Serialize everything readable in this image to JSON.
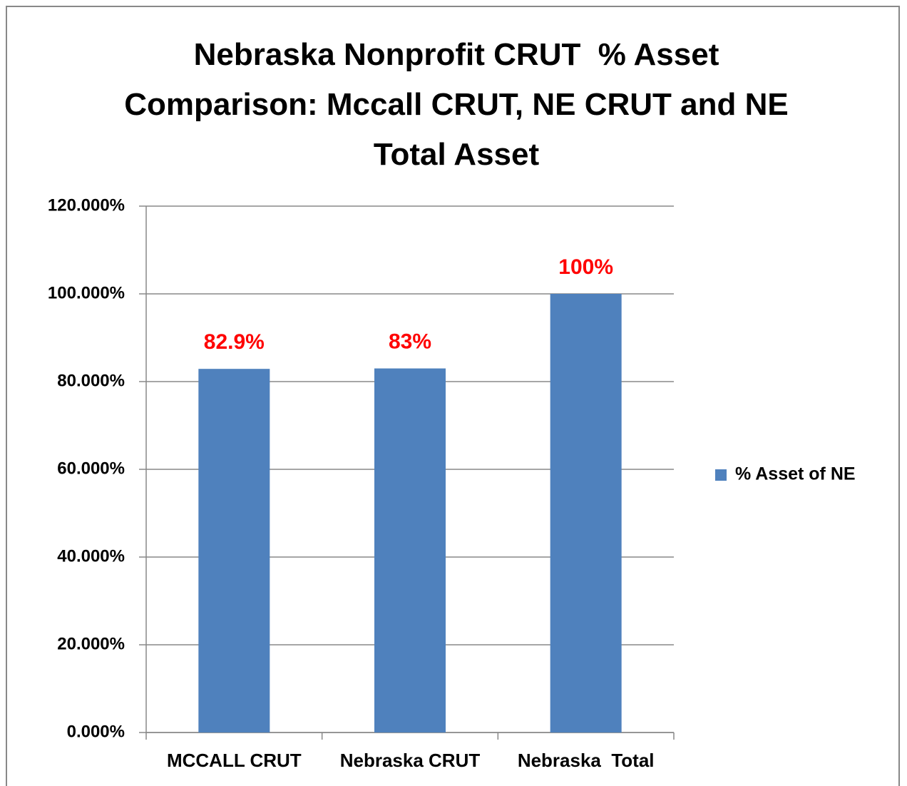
{
  "chart_data": {
    "type": "bar",
    "title": "Nebraska Nonprofit CRUT  % Asset Comparison: Mccall CRUT, NE CRUT and NE Total Asset",
    "categories": [
      "MCCALL CRUT",
      "Nebraska CRUT",
      "Nebraska  Total"
    ],
    "series": [
      {
        "name": "% Asset of NE",
        "color": "#4f81bd",
        "values": [
          82.9,
          83,
          100
        ],
        "value_labels": [
          "82.9%",
          "83%",
          "100%"
        ]
      }
    ],
    "value_label_color": "#ff0000",
    "ylim": [
      0,
      120
    ],
    "yticks": [
      {
        "value": 0,
        "label": "0.000%"
      },
      {
        "value": 20,
        "label": "20.000%"
      },
      {
        "value": 40,
        "label": "40.000%"
      },
      {
        "value": 60,
        "label": "60.000%"
      },
      {
        "value": 80,
        "label": "80.000%"
      },
      {
        "value": 100,
        "label": "100.000%"
      },
      {
        "value": 120,
        "label": "120.000%"
      }
    ],
    "grid": true,
    "legend": "right"
  }
}
